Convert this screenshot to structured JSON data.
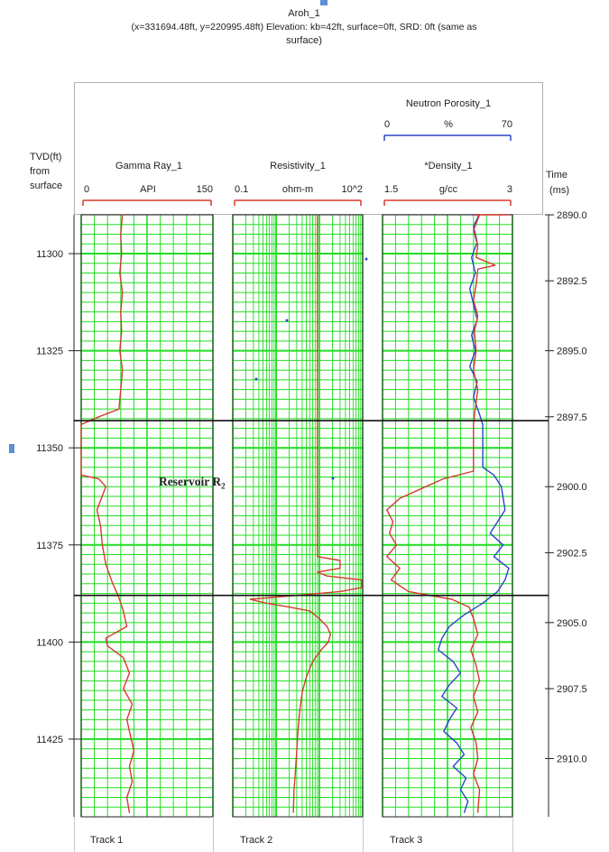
{
  "header": {
    "well_name": "Aroh_1",
    "location_line1": "(x=331694.48ft, y=220995.48ft) Elevation: kb=42ft, surface=0ft, SRD: 0ft (same as",
    "location_line2": "surface)"
  },
  "depth_track": {
    "label_line1": "TVD(ft)",
    "label_line2": "from",
    "label_line3": "surface"
  },
  "time_track": {
    "label_line1": "Time",
    "label_line2": "(ms)"
  },
  "curves": {
    "gamma_ray": {
      "name": "Gamma Ray_1",
      "unit": "API",
      "min_label": "0",
      "max_label": "150",
      "min": 0,
      "max": 150,
      "color": "#d63a2e"
    },
    "resistivity": {
      "name": "Resistivity_1",
      "unit": "ohm-m",
      "min_label": "0.1",
      "max_label": "10^2",
      "min": 0.1,
      "max": 100,
      "color": "#d63a2e"
    },
    "neutron_porosity": {
      "name": "Neutron Porosity_1",
      "unit": "%",
      "min_label": "0",
      "max_label": "70",
      "min": 0,
      "max": 70,
      "color": "#2b45c8"
    },
    "density": {
      "name": "*Density_1",
      "unit": "g/cc",
      "min_label": "1.5",
      "max_label": "3",
      "min": 1.5,
      "max": 3,
      "color": "#d63a2e"
    }
  },
  "annotation": {
    "text": "Reservoir R",
    "subscript": "2"
  },
  "tracks": {
    "track1": "Track 1",
    "track2": "Track 2",
    "track3": "Track 3"
  },
  "colors": {
    "grid": "#22dd22",
    "background": "#ffffff",
    "boundary": "#111111"
  },
  "chart_data": {
    "type": "line",
    "depth_range": [
      11290,
      11445
    ],
    "depth_ticks": [
      11300,
      11325,
      11350,
      11375,
      11400,
      11425
    ],
    "time_ticks": [
      {
        "depth": 11290,
        "label": "2890.0"
      },
      {
        "depth": 11307,
        "label": "2892.5"
      },
      {
        "depth": 11325,
        "label": "2895.0"
      },
      {
        "depth": 11342,
        "label": "2897.5"
      },
      {
        "depth": 11360,
        "label": "2900.0"
      },
      {
        "depth": 11377,
        "label": "2902.5"
      },
      {
        "depth": 11395,
        "label": "2905.0"
      },
      {
        "depth": 11412,
        "label": "2907.5"
      },
      {
        "depth": 11430,
        "label": "2910.0"
      }
    ],
    "reservoir_top": 11343,
    "reservoir_base": 11388,
    "series": [
      {
        "name": "Gamma Ray_1",
        "track": 1,
        "scale": "linear",
        "points": [
          [
            11281,
            48
          ],
          [
            11285,
            46
          ],
          [
            11290,
            47
          ],
          [
            11295,
            45
          ],
          [
            11300,
            46
          ],
          [
            11305,
            44
          ],
          [
            11310,
            47
          ],
          [
            11315,
            45
          ],
          [
            11320,
            46
          ],
          [
            11325,
            44
          ],
          [
            11330,
            47
          ],
          [
            11335,
            45
          ],
          [
            11340,
            43
          ],
          [
            11342,
            20
          ],
          [
            11344,
            0
          ],
          [
            11350,
            0
          ],
          [
            11357,
            0
          ],
          [
            11358,
            20
          ],
          [
            11360,
            28
          ],
          [
            11363,
            23
          ],
          [
            11366,
            18
          ],
          [
            11370,
            22
          ],
          [
            11375,
            24
          ],
          [
            11380,
            28
          ],
          [
            11385,
            36
          ],
          [
            11388,
            42
          ],
          [
            11392,
            48
          ],
          [
            11396,
            52
          ],
          [
            11399,
            28
          ],
          [
            11401,
            30
          ],
          [
            11404,
            48
          ],
          [
            11408,
            55
          ],
          [
            11412,
            48
          ],
          [
            11416,
            58
          ],
          [
            11420,
            52
          ],
          [
            11424,
            56
          ],
          [
            11428,
            60
          ],
          [
            11432,
            55
          ],
          [
            11436,
            58
          ],
          [
            11440,
            52
          ],
          [
            11444,
            55
          ]
        ]
      },
      {
        "name": "Resistivity_1",
        "track": 2,
        "scale": "log",
        "points": [
          [
            11281,
            9
          ],
          [
            11290,
            9
          ],
          [
            11300,
            9
          ],
          [
            11310,
            9
          ],
          [
            11320,
            9
          ],
          [
            11330,
            9
          ],
          [
            11340,
            9
          ],
          [
            11350,
            9
          ],
          [
            11360,
            9
          ],
          [
            11370,
            9
          ],
          [
            11378,
            9
          ],
          [
            11379,
            30
          ],
          [
            11381,
            30
          ],
          [
            11382,
            9
          ],
          [
            11383,
            15
          ],
          [
            11384,
            95
          ],
          [
            11386,
            95
          ],
          [
            11387,
            30
          ],
          [
            11388,
            3
          ],
          [
            11389,
            0.25
          ],
          [
            11390,
            0.6
          ],
          [
            11391,
            2
          ],
          [
            11392,
            6
          ],
          [
            11394,
            10
          ],
          [
            11396,
            15
          ],
          [
            11398,
            18
          ],
          [
            11400,
            16
          ],
          [
            11402,
            11
          ],
          [
            11405,
            7
          ],
          [
            11409,
            5
          ],
          [
            11413,
            4
          ],
          [
            11418,
            3.5
          ],
          [
            11423,
            3.2
          ],
          [
            11428,
            3
          ],
          [
            11433,
            2.8
          ],
          [
            11438,
            2.6
          ],
          [
            11444,
            2.5
          ]
        ]
      },
      {
        "name": "Neutron Porosity_1",
        "track": 3,
        "scale": "linear",
        "points": [
          [
            11281,
            50
          ],
          [
            11285,
            48
          ],
          [
            11289,
            52
          ],
          [
            11293,
            49
          ],
          [
            11297,
            51
          ],
          [
            11301,
            48
          ],
          [
            11305,
            50
          ],
          [
            11309,
            47
          ],
          [
            11313,
            49
          ],
          [
            11317,
            51
          ],
          [
            11321,
            48
          ],
          [
            11325,
            50
          ],
          [
            11329,
            47
          ],
          [
            11333,
            51
          ],
          [
            11337,
            49
          ],
          [
            11341,
            52
          ],
          [
            11344,
            54
          ],
          [
            11350,
            54
          ],
          [
            11355,
            54
          ],
          [
            11357,
            60
          ],
          [
            11360,
            64
          ],
          [
            11363,
            65
          ],
          [
            11366,
            66
          ],
          [
            11369,
            62
          ],
          [
            11372,
            58
          ],
          [
            11375,
            65
          ],
          [
            11378,
            60
          ],
          [
            11381,
            68
          ],
          [
            11384,
            66
          ],
          [
            11387,
            62
          ],
          [
            11390,
            54
          ],
          [
            11393,
            44
          ],
          [
            11396,
            36
          ],
          [
            11399,
            32
          ],
          [
            11402,
            30
          ],
          [
            11405,
            38
          ],
          [
            11408,
            42
          ],
          [
            11411,
            36
          ],
          [
            11414,
            32
          ],
          [
            11417,
            40
          ],
          [
            11420,
            36
          ],
          [
            11423,
            33
          ],
          [
            11426,
            40
          ],
          [
            11429,
            44
          ],
          [
            11432,
            38
          ],
          [
            11435,
            45
          ],
          [
            11438,
            42
          ],
          [
            11441,
            46
          ],
          [
            11444,
            44
          ]
        ]
      },
      {
        "name": "*Density_1",
        "track": 3,
        "scale": "linear",
        "points": [
          [
            11281,
            2.6
          ],
          [
            11284,
            2.55
          ],
          [
            11286,
            2.9
          ],
          [
            11288,
            2.95
          ],
          [
            11290,
            2.62
          ],
          [
            11294,
            2.55
          ],
          [
            11298,
            2.6
          ],
          [
            11301,
            2.58
          ],
          [
            11303,
            2.8
          ],
          [
            11304,
            2.6
          ],
          [
            11308,
            2.58
          ],
          [
            11312,
            2.55
          ],
          [
            11316,
            2.6
          ],
          [
            11320,
            2.56
          ],
          [
            11325,
            2.58
          ],
          [
            11330,
            2.55
          ],
          [
            11335,
            2.6
          ],
          [
            11340,
            2.57
          ],
          [
            11344,
            2.55
          ],
          [
            11350,
            2.55
          ],
          [
            11356,
            2.55
          ],
          [
            11358,
            2.2
          ],
          [
            11360,
            2.0
          ],
          [
            11363,
            1.7
          ],
          [
            11366,
            1.55
          ],
          [
            11369,
            1.62
          ],
          [
            11372,
            1.58
          ],
          [
            11375,
            1.66
          ],
          [
            11378,
            1.55
          ],
          [
            11381,
            1.7
          ],
          [
            11384,
            1.6
          ],
          [
            11387,
            1.8
          ],
          [
            11389,
            2.3
          ],
          [
            11391,
            2.5
          ],
          [
            11394,
            2.55
          ],
          [
            11398,
            2.6
          ],
          [
            11402,
            2.52
          ],
          [
            11406,
            2.58
          ],
          [
            11410,
            2.62
          ],
          [
            11414,
            2.55
          ],
          [
            11418,
            2.6
          ],
          [
            11422,
            2.52
          ],
          [
            11426,
            2.58
          ],
          [
            11430,
            2.6
          ],
          [
            11434,
            2.55
          ],
          [
            11438,
            2.62
          ],
          [
            11444,
            2.6
          ]
        ]
      }
    ]
  }
}
